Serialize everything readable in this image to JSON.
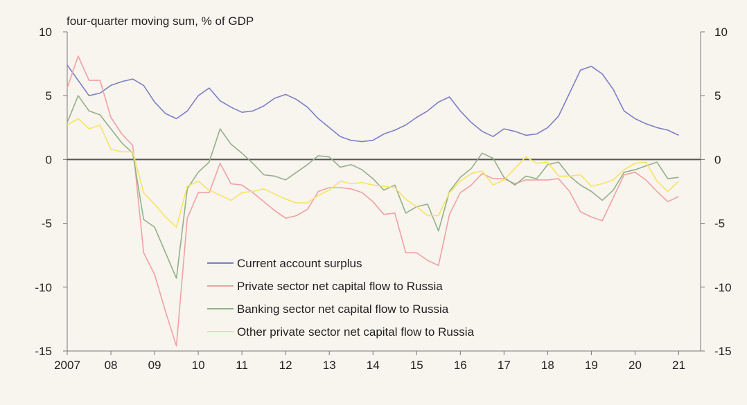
{
  "chart_data": {
    "type": "line",
    "unit_label": "four-quarter moving sum, % of GDP",
    "x_tick_labels": [
      "2007",
      "08",
      "09",
      "10",
      "11",
      "12",
      "13",
      "14",
      "15",
      "16",
      "17",
      "18",
      "19",
      "20",
      "21"
    ],
    "x_range": [
      2007.0,
      2021.5
    ],
    "ylim": [
      -15,
      10
    ],
    "y_ticks": [
      10,
      5,
      0,
      -5,
      -10,
      -15
    ],
    "legend_position": "lower-center",
    "x": [
      2007.0,
      2007.25,
      2007.5,
      2007.75,
      2008.0,
      2008.25,
      2008.5,
      2008.75,
      2009.0,
      2009.25,
      2009.5,
      2009.75,
      2010.0,
      2010.25,
      2010.5,
      2010.75,
      2011.0,
      2011.25,
      2011.5,
      2011.75,
      2012.0,
      2012.25,
      2012.5,
      2012.75,
      2013.0,
      2013.25,
      2013.5,
      2013.75,
      2014.0,
      2014.25,
      2014.5,
      2014.75,
      2015.0,
      2015.25,
      2015.5,
      2015.75,
      2016.0,
      2016.25,
      2016.5,
      2016.75,
      2017.0,
      2017.25,
      2017.5,
      2017.75,
      2018.0,
      2018.25,
      2018.5,
      2018.75,
      2019.0,
      2019.25,
      2019.5,
      2019.75,
      2020.0,
      2020.25,
      2020.5,
      2020.75,
      2021.0
    ],
    "series": [
      {
        "name": "Current account surplus",
        "color": "#7b7fc7",
        "values": [
          7.4,
          6.2,
          5.0,
          5.2,
          5.8,
          6.1,
          6.3,
          5.8,
          4.5,
          3.6,
          3.2,
          3.8,
          5.0,
          5.6,
          4.6,
          4.1,
          3.7,
          3.8,
          4.2,
          4.8,
          5.1,
          4.7,
          4.1,
          3.2,
          2.5,
          1.8,
          1.5,
          1.4,
          1.5,
          2.0,
          2.3,
          2.7,
          3.3,
          3.8,
          4.5,
          4.9,
          3.8,
          2.9,
          2.2,
          1.8,
          2.4,
          2.2,
          1.9,
          2.0,
          2.5,
          3.4,
          5.2,
          7.0,
          7.3,
          6.7,
          5.5,
          3.8,
          3.2,
          2.8,
          2.5,
          2.3,
          1.9
        ]
      },
      {
        "name": "Private sector net capital flow to Russia",
        "color": "#f0a1a3",
        "values": [
          5.6,
          8.1,
          6.2,
          6.2,
          3.3,
          2.0,
          1.1,
          -7.3,
          -9.0,
          -11.9,
          -14.6,
          -4.6,
          -2.6,
          -2.6,
          -0.3,
          -1.9,
          -2.0,
          -2.6,
          -3.3,
          -4.0,
          -4.6,
          -4.4,
          -3.9,
          -2.5,
          -2.2,
          -2.2,
          -2.3,
          -2.6,
          -3.3,
          -4.3,
          -4.2,
          -7.3,
          -7.3,
          -7.9,
          -8.3,
          -4.3,
          -2.6,
          -2.0,
          -1.1,
          -1.5,
          -1.5,
          -1.9,
          -1.6,
          -1.6,
          -1.6,
          -1.5,
          -2.5,
          -4.1,
          -4.5,
          -4.8,
          -3.0,
          -1.2,
          -1.0,
          -1.6,
          -2.5,
          -3.3,
          -2.9
        ]
      },
      {
        "name": "Banking sector net capital flow to Russia",
        "color": "#92b08a",
        "values": [
          2.9,
          5.0,
          3.8,
          3.5,
          2.4,
          1.3,
          0.5,
          -4.7,
          -5.3,
          -7.3,
          -9.3,
          -2.3,
          -1.0,
          -0.2,
          2.4,
          1.2,
          0.5,
          -0.3,
          -1.2,
          -1.3,
          -1.6,
          -1.0,
          -0.4,
          0.3,
          0.2,
          -0.6,
          -0.4,
          -0.8,
          -1.5,
          -2.4,
          -2.0,
          -4.2,
          -3.7,
          -3.5,
          -5.6,
          -2.5,
          -1.4,
          -0.7,
          0.5,
          0.1,
          -1.4,
          -2.0,
          -1.3,
          -1.5,
          -0.4,
          -0.2,
          -1.3,
          -2.0,
          -2.5,
          -3.2,
          -2.4,
          -1.0,
          -0.8,
          -0.5,
          -0.2,
          -1.5,
          -1.4
        ]
      },
      {
        "name": "Other private sector net capital flow to Russia",
        "color": "#f7e55f",
        "values": [
          2.7,
          3.2,
          2.4,
          2.7,
          0.8,
          0.6,
          0.6,
          -2.6,
          -3.5,
          -4.5,
          -5.3,
          -2.1,
          -1.7,
          -2.4,
          -2.8,
          -3.2,
          -2.6,
          -2.5,
          -2.3,
          -2.7,
          -3.1,
          -3.4,
          -3.4,
          -2.8,
          -2.4,
          -1.7,
          -1.9,
          -1.8,
          -2.0,
          -2.1,
          -2.2,
          -3.1,
          -3.7,
          -4.4,
          -4.4,
          -2.6,
          -1.7,
          -1.1,
          -0.9,
          -2.0,
          -1.6,
          -0.7,
          0.2,
          -0.3,
          -0.2,
          -1.3,
          -1.3,
          -1.2,
          -2.1,
          -1.9,
          -1.6,
          -0.8,
          -0.3,
          -0.2,
          -1.7,
          -2.5,
          -1.7
        ]
      }
    ]
  }
}
